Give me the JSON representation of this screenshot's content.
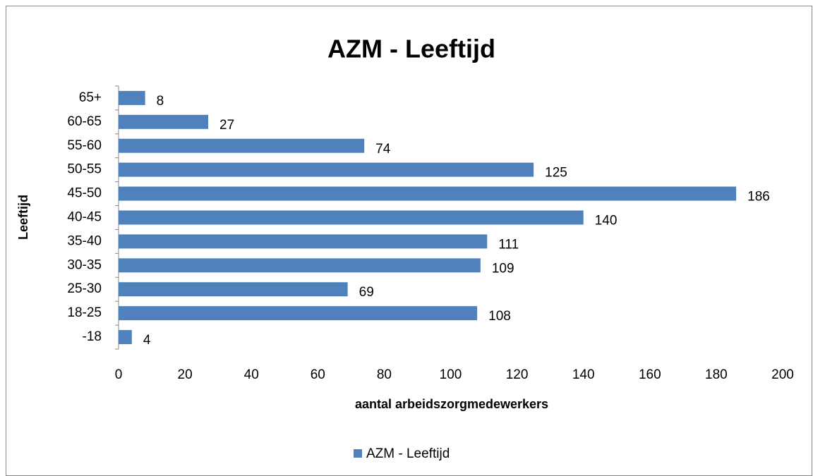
{
  "chart_data": {
    "type": "bar",
    "orientation": "horizontal",
    "title": "AZM - Leeftijd",
    "x_label": "aantal arbeidszorgmedewerkers",
    "y_label": "Leeftijd",
    "categories": [
      "-18",
      "18-25",
      "25-30",
      "30-35",
      "35-40",
      "40-45",
      "45-50",
      "50-55",
      "55-60",
      "60-65",
      "65+"
    ],
    "series": [
      {
        "name": "AZM - Leeftijd",
        "color": "#4f81bd",
        "values": [
          4,
          108,
          69,
          109,
          111,
          140,
          186,
          125,
          74,
          27,
          8
        ]
      }
    ],
    "xlim": [
      0,
      200
    ],
    "xticks": [
      0,
      20,
      40,
      60,
      80,
      100,
      120,
      140,
      160,
      180,
      200
    ],
    "legend": "bottom"
  }
}
